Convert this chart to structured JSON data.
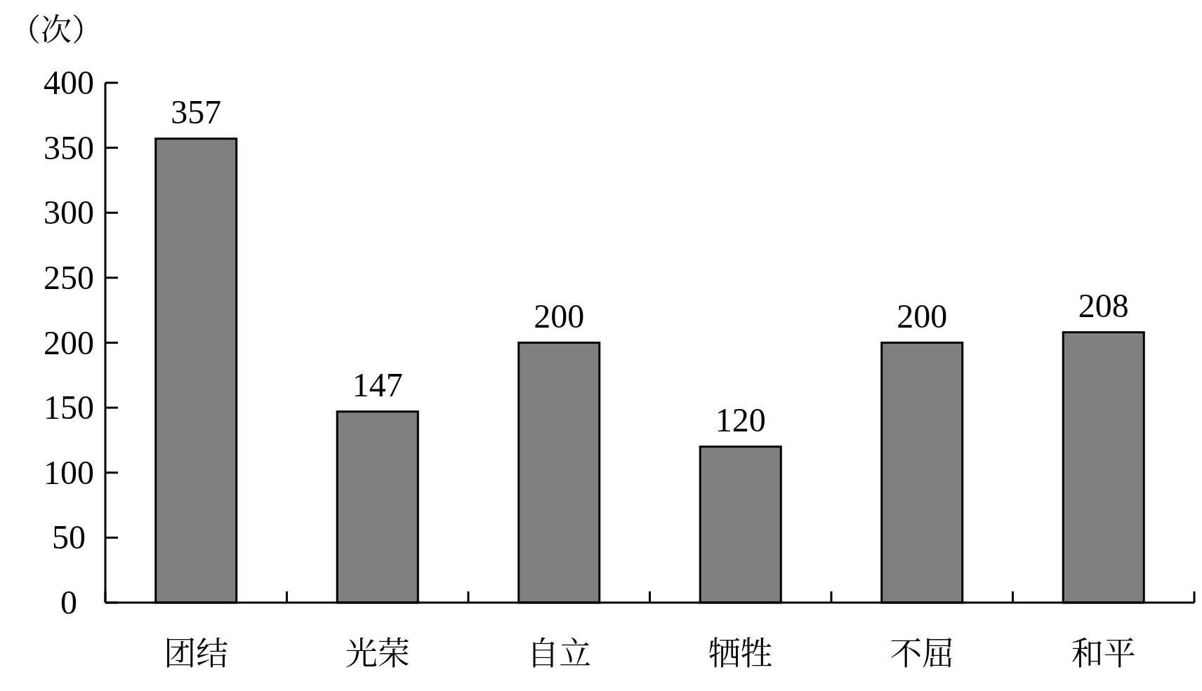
{
  "chart_data": {
    "type": "bar",
    "ylabel": "（次）",
    "categories": [
      "团结",
      "光荣",
      "自立",
      "牺牲",
      "不屈",
      "和平"
    ],
    "values": [
      357,
      147,
      200,
      120,
      200,
      208
    ],
    "color": "#808080",
    "ylim": [
      0,
      400
    ],
    "yticks": [
      0,
      50,
      100,
      150,
      200,
      250,
      300,
      350,
      400
    ],
    "data_labels": true
  }
}
